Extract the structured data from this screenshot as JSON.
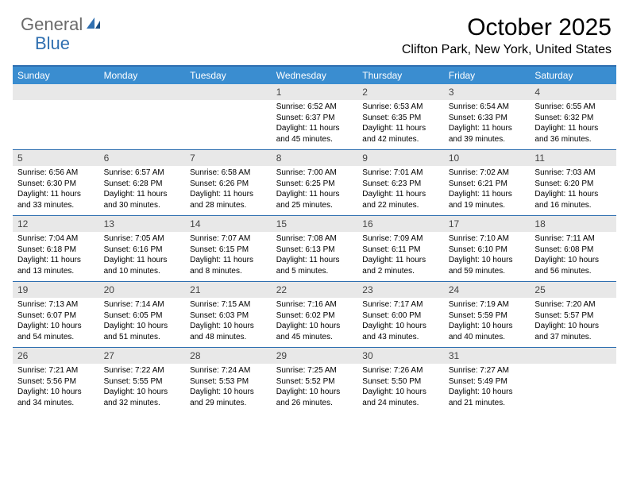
{
  "logo": {
    "text1": "General",
    "text2": "Blue"
  },
  "title": "October 2025",
  "location": "Clifton Park, New York, United States",
  "colors": {
    "header_bg": "#3a8dd0",
    "border": "#2f6fb0",
    "daynum_bg": "#e8e8e8",
    "logo_gray": "#6b6b6b",
    "logo_blue": "#2f6fb0"
  },
  "dow": [
    "Sunday",
    "Monday",
    "Tuesday",
    "Wednesday",
    "Thursday",
    "Friday",
    "Saturday"
  ],
  "weeks": [
    [
      null,
      null,
      null,
      {
        "n": "1",
        "sr": "6:52 AM",
        "ss": "6:37 PM",
        "dl1": "11 hours",
        "dl2": "and 45 minutes."
      },
      {
        "n": "2",
        "sr": "6:53 AM",
        "ss": "6:35 PM",
        "dl1": "11 hours",
        "dl2": "and 42 minutes."
      },
      {
        "n": "3",
        "sr": "6:54 AM",
        "ss": "6:33 PM",
        "dl1": "11 hours",
        "dl2": "and 39 minutes."
      },
      {
        "n": "4",
        "sr": "6:55 AM",
        "ss": "6:32 PM",
        "dl1": "11 hours",
        "dl2": "and 36 minutes."
      }
    ],
    [
      {
        "n": "5",
        "sr": "6:56 AM",
        "ss": "6:30 PM",
        "dl1": "11 hours",
        "dl2": "and 33 minutes."
      },
      {
        "n": "6",
        "sr": "6:57 AM",
        "ss": "6:28 PM",
        "dl1": "11 hours",
        "dl2": "and 30 minutes."
      },
      {
        "n": "7",
        "sr": "6:58 AM",
        "ss": "6:26 PM",
        "dl1": "11 hours",
        "dl2": "and 28 minutes."
      },
      {
        "n": "8",
        "sr": "7:00 AM",
        "ss": "6:25 PM",
        "dl1": "11 hours",
        "dl2": "and 25 minutes."
      },
      {
        "n": "9",
        "sr": "7:01 AM",
        "ss": "6:23 PM",
        "dl1": "11 hours",
        "dl2": "and 22 minutes."
      },
      {
        "n": "10",
        "sr": "7:02 AM",
        "ss": "6:21 PM",
        "dl1": "11 hours",
        "dl2": "and 19 minutes."
      },
      {
        "n": "11",
        "sr": "7:03 AM",
        "ss": "6:20 PM",
        "dl1": "11 hours",
        "dl2": "and 16 minutes."
      }
    ],
    [
      {
        "n": "12",
        "sr": "7:04 AM",
        "ss": "6:18 PM",
        "dl1": "11 hours",
        "dl2": "and 13 minutes."
      },
      {
        "n": "13",
        "sr": "7:05 AM",
        "ss": "6:16 PM",
        "dl1": "11 hours",
        "dl2": "and 10 minutes."
      },
      {
        "n": "14",
        "sr": "7:07 AM",
        "ss": "6:15 PM",
        "dl1": "11 hours",
        "dl2": "and 8 minutes."
      },
      {
        "n": "15",
        "sr": "7:08 AM",
        "ss": "6:13 PM",
        "dl1": "11 hours",
        "dl2": "and 5 minutes."
      },
      {
        "n": "16",
        "sr": "7:09 AM",
        "ss": "6:11 PM",
        "dl1": "11 hours",
        "dl2": "and 2 minutes."
      },
      {
        "n": "17",
        "sr": "7:10 AM",
        "ss": "6:10 PM",
        "dl1": "10 hours",
        "dl2": "and 59 minutes."
      },
      {
        "n": "18",
        "sr": "7:11 AM",
        "ss": "6:08 PM",
        "dl1": "10 hours",
        "dl2": "and 56 minutes."
      }
    ],
    [
      {
        "n": "19",
        "sr": "7:13 AM",
        "ss": "6:07 PM",
        "dl1": "10 hours",
        "dl2": "and 54 minutes."
      },
      {
        "n": "20",
        "sr": "7:14 AM",
        "ss": "6:05 PM",
        "dl1": "10 hours",
        "dl2": "and 51 minutes."
      },
      {
        "n": "21",
        "sr": "7:15 AM",
        "ss": "6:03 PM",
        "dl1": "10 hours",
        "dl2": "and 48 minutes."
      },
      {
        "n": "22",
        "sr": "7:16 AM",
        "ss": "6:02 PM",
        "dl1": "10 hours",
        "dl2": "and 45 minutes."
      },
      {
        "n": "23",
        "sr": "7:17 AM",
        "ss": "6:00 PM",
        "dl1": "10 hours",
        "dl2": "and 43 minutes."
      },
      {
        "n": "24",
        "sr": "7:19 AM",
        "ss": "5:59 PM",
        "dl1": "10 hours",
        "dl2": "and 40 minutes."
      },
      {
        "n": "25",
        "sr": "7:20 AM",
        "ss": "5:57 PM",
        "dl1": "10 hours",
        "dl2": "and 37 minutes."
      }
    ],
    [
      {
        "n": "26",
        "sr": "7:21 AM",
        "ss": "5:56 PM",
        "dl1": "10 hours",
        "dl2": "and 34 minutes."
      },
      {
        "n": "27",
        "sr": "7:22 AM",
        "ss": "5:55 PM",
        "dl1": "10 hours",
        "dl2": "and 32 minutes."
      },
      {
        "n": "28",
        "sr": "7:24 AM",
        "ss": "5:53 PM",
        "dl1": "10 hours",
        "dl2": "and 29 minutes."
      },
      {
        "n": "29",
        "sr": "7:25 AM",
        "ss": "5:52 PM",
        "dl1": "10 hours",
        "dl2": "and 26 minutes."
      },
      {
        "n": "30",
        "sr": "7:26 AM",
        "ss": "5:50 PM",
        "dl1": "10 hours",
        "dl2": "and 24 minutes."
      },
      {
        "n": "31",
        "sr": "7:27 AM",
        "ss": "5:49 PM",
        "dl1": "10 hours",
        "dl2": "and 21 minutes."
      },
      null
    ]
  ],
  "labels": {
    "sunrise": "Sunrise:",
    "sunset": "Sunset:",
    "daylight": "Daylight:"
  }
}
